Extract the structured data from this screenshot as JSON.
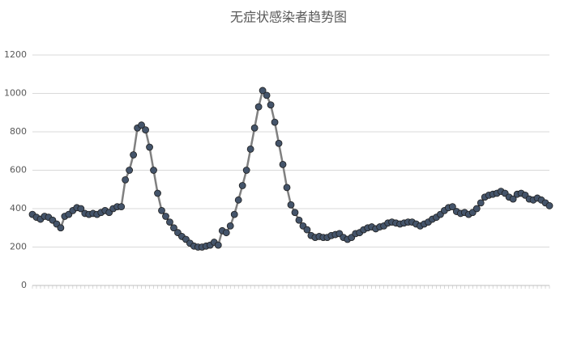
{
  "chart_data": {
    "type": "line",
    "title": "无症状感染者趋势图",
    "values": [
      370,
      355,
      345,
      360,
      355,
      340,
      320,
      300,
      360,
      370,
      390,
      405,
      400,
      375,
      370,
      375,
      370,
      380,
      390,
      380,
      400,
      410,
      410,
      550,
      600,
      680,
      820,
      835,
      810,
      720,
      600,
      480,
      390,
      360,
      330,
      300,
      275,
      255,
      240,
      220,
      205,
      200,
      200,
      205,
      210,
      225,
      210,
      285,
      275,
      310,
      370,
      445,
      520,
      600,
      710,
      820,
      930,
      1015,
      990,
      940,
      850,
      740,
      630,
      510,
      420,
      380,
      340,
      310,
      290,
      260,
      250,
      255,
      250,
      250,
      260,
      265,
      270,
      250,
      240,
      250,
      270,
      275,
      290,
      300,
      305,
      295,
      305,
      310,
      325,
      330,
      325,
      320,
      325,
      330,
      330,
      320,
      310,
      320,
      330,
      345,
      355,
      370,
      390,
      405,
      410,
      385,
      375,
      380,
      370,
      380,
      400,
      430,
      460,
      470,
      475,
      480,
      490,
      480,
      460,
      450,
      475,
      480,
      470,
      450,
      445,
      455,
      445,
      430,
      415
    ],
    "line_color": "#808080",
    "marker_color": "#44546a",
    "ylim": [
      0,
      1200
    ],
    "yticks": [
      0,
      200,
      400,
      600,
      800,
      1000,
      1200
    ],
    "grid": true
  }
}
